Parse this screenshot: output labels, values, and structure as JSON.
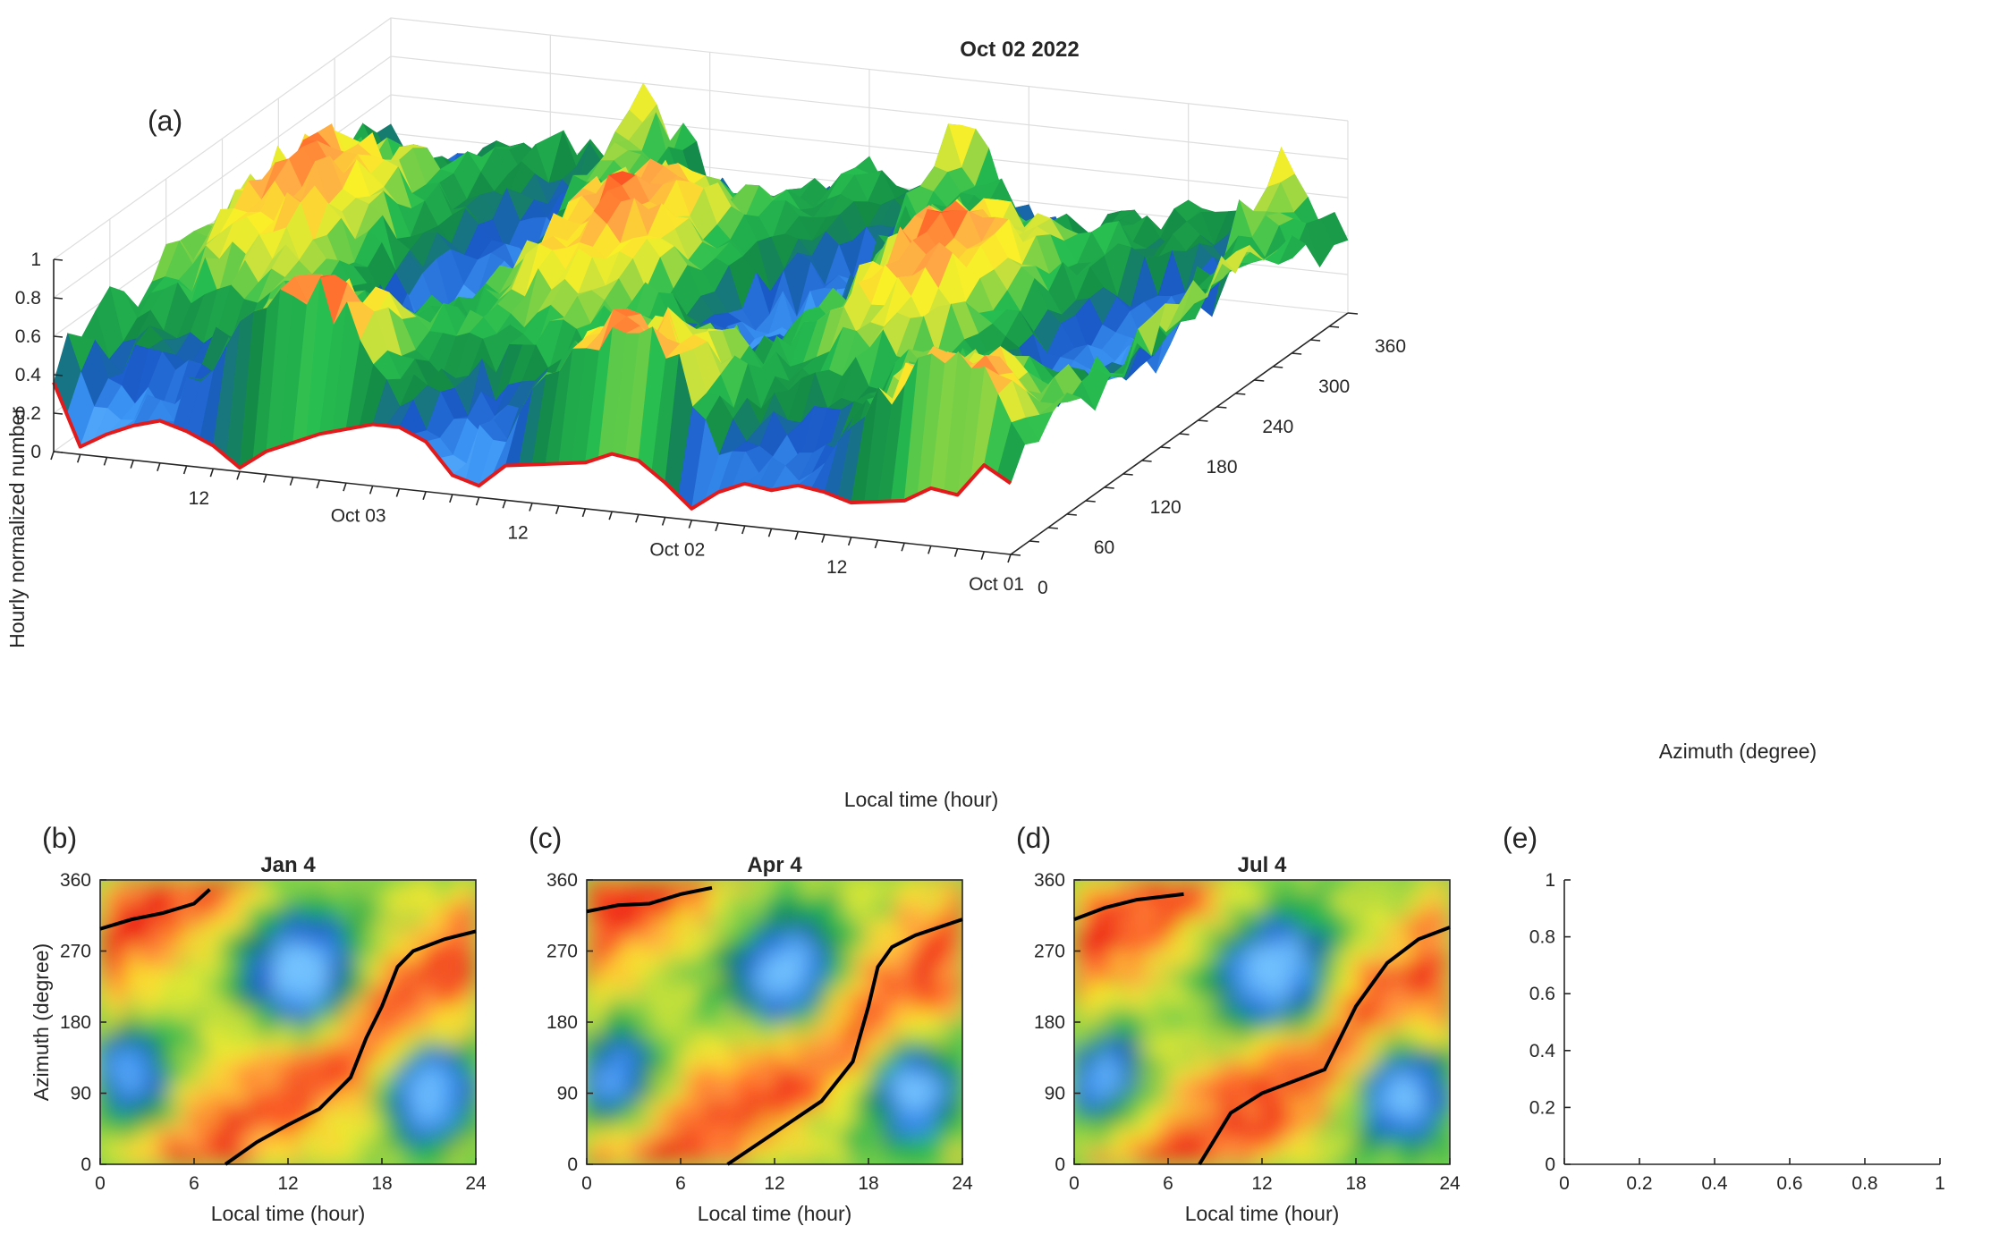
{
  "panels": {
    "a": "(a)",
    "b": "(b)",
    "c": "(c)",
    "d": "(d)",
    "e": "(e)"
  },
  "chart_data": [
    {
      "id": "a",
      "type": "surface",
      "title": "Oct 02 2022",
      "zlabel": "Hourly normalized number",
      "xlabel": "Local time (hour)",
      "ylabel": "Azimuth (degree)",
      "zlim": [
        0,
        1
      ],
      "ylim": [
        0,
        360
      ],
      "z_ticks": [
        "0",
        "0.2",
        "0.4",
        "0.6",
        "0.8",
        "1"
      ],
      "y_ticks": [
        "0",
        "60",
        "120",
        "180",
        "240",
        "300",
        "360"
      ],
      "x_ticks": [
        "Oct 01",
        "12",
        "Oct 02",
        "12",
        "Oct 03",
        "12"
      ],
      "front_edge": {
        "t_hours": [
          0,
          2,
          4,
          6,
          8,
          10,
          12,
          14,
          16,
          18,
          20,
          22,
          24,
          26,
          28,
          30,
          32,
          34,
          36,
          38,
          40,
          42,
          44,
          46,
          48,
          50,
          52,
          54,
          56,
          58,
          60,
          62,
          64,
          66,
          68,
          70,
          72
        ],
        "z": [
          0.37,
          0.45,
          0.28,
          0.3,
          0.22,
          0.2,
          0.18,
          0.22,
          0.24,
          0.2,
          0.22,
          0.16,
          0.06,
          0.18,
          0.28,
          0.3,
          0.24,
          0.22,
          0.2,
          0.18,
          0.06,
          0.1,
          0.26,
          0.32,
          0.32,
          0.28,
          0.24,
          0.18,
          0.12,
          0.02,
          0.12,
          0.18,
          0.22,
          0.18,
          0.12,
          0.04,
          0.36
        ]
      }
    },
    {
      "id": "b",
      "type": "heatmap",
      "title": "Jan 4",
      "xlabel": "Local time (hour)",
      "ylabel": "Azimuth (degree)",
      "xlim": [
        0,
        24
      ],
      "ylim": [
        0,
        360
      ],
      "x_ticks": [
        "0",
        "6",
        "12",
        "18",
        "24"
      ],
      "y_ticks": [
        "0",
        "90",
        "180",
        "270",
        "360"
      ],
      "curve_upper": {
        "x": [
          0,
          2,
          4,
          6,
          7
        ],
        "y": [
          298,
          310,
          318,
          330,
          348
        ]
      },
      "curve_lower": {
        "x": [
          8,
          10,
          12,
          14,
          16,
          17,
          18,
          19,
          20,
          22,
          24
        ],
        "y": [
          0,
          28,
          50,
          70,
          110,
          160,
          200,
          250,
          270,
          285,
          295
        ]
      }
    },
    {
      "id": "c",
      "type": "heatmap",
      "title": "Apr 4",
      "xlabel": "Local time (hour)",
      "ylabel": "",
      "xlim": [
        0,
        24
      ],
      "ylim": [
        0,
        360
      ],
      "x_ticks": [
        "0",
        "6",
        "12",
        "18",
        "24"
      ],
      "y_ticks": [
        "0",
        "90",
        "180",
        "270",
        "360"
      ],
      "curve_upper": {
        "x": [
          0,
          2,
          4,
          6,
          8
        ],
        "y": [
          320,
          328,
          330,
          342,
          350
        ]
      },
      "curve_lower": {
        "x": [
          9,
          12,
          15,
          17,
          18,
          18.6,
          19.5,
          21,
          24
        ],
        "y": [
          0,
          40,
          80,
          130,
          200,
          250,
          275,
          290,
          310
        ]
      }
    },
    {
      "id": "d",
      "type": "heatmap",
      "title": "Jul 4",
      "xlabel": "Local time (hour)",
      "ylabel": "",
      "xlim": [
        0,
        24
      ],
      "ylim": [
        0,
        360
      ],
      "x_ticks": [
        "0",
        "6",
        "12",
        "18",
        "24"
      ],
      "y_ticks": [
        "0",
        "90",
        "180",
        "270",
        "360"
      ],
      "curve_upper": {
        "x": [
          0,
          2,
          4,
          7
        ],
        "y": [
          310,
          325,
          335,
          342
        ]
      },
      "curve_lower": {
        "x": [
          8,
          10,
          12,
          14,
          16,
          18,
          20,
          22,
          24
        ],
        "y": [
          0,
          65,
          90,
          105,
          120,
          200,
          255,
          285,
          300
        ]
      }
    },
    {
      "id": "e",
      "type": "line",
      "title": "",
      "xlim": [
        0,
        1
      ],
      "ylim": [
        0,
        1
      ],
      "x_ticks": [
        "0",
        "0.2",
        "0.4",
        "0.6",
        "0.8",
        "1"
      ],
      "y_ticks": [
        "0",
        "0.2",
        "0.4",
        "0.6",
        "0.8",
        "1"
      ],
      "series": []
    }
  ]
}
